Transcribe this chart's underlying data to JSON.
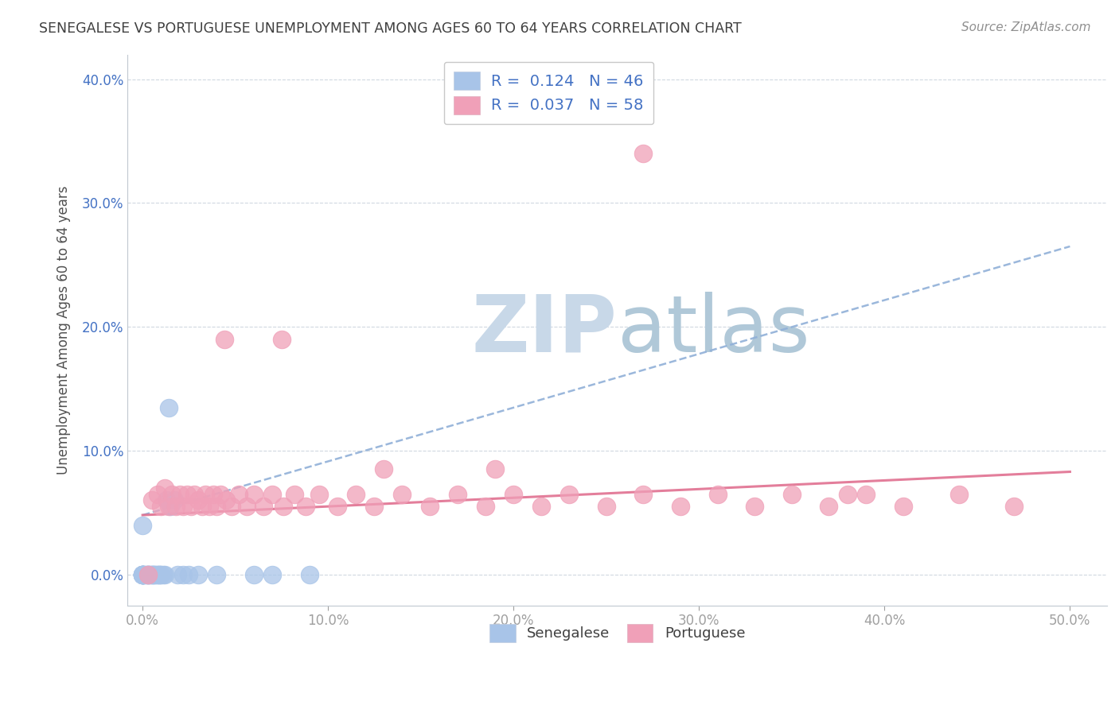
{
  "title": "SENEGALESE VS PORTUGUESE UNEMPLOYMENT AMONG AGES 60 TO 64 YEARS CORRELATION CHART",
  "source": "Source: ZipAtlas.com",
  "ylabel": "Unemployment Among Ages 60 to 64 years",
  "senegalese_R": 0.124,
  "senegalese_N": 46,
  "portuguese_R": 0.037,
  "portuguese_N": 58,
  "senegalese_color": "#a8c4e8",
  "portuguese_color": "#f0a0b8",
  "trendline_senegalese_color": "#90b0d8",
  "trendline_portuguese_color": "#e07090",
  "title_color": "#404040",
  "source_color": "#909090",
  "legend_text_color": "#4472c4",
  "background_color": "#ffffff",
  "watermark_text_color": "#c8d8e8",
  "grid_color": "#d0d8e0",
  "xlim": [
    -0.008,
    0.52
  ],
  "ylim": [
    -0.025,
    0.42
  ],
  "xticks": [
    0.0,
    0.1,
    0.2,
    0.3,
    0.4,
    0.5
  ],
  "yticks": [
    0.0,
    0.1,
    0.2,
    0.3,
    0.4
  ],
  "senegalese_x": [
    0.0,
    0.0,
    0.0,
    0.0,
    0.0,
    0.0,
    0.0,
    0.0,
    0.0,
    0.0,
    0.001,
    0.001,
    0.002,
    0.002,
    0.003,
    0.003,
    0.003,
    0.004,
    0.004,
    0.005,
    0.005,
    0.005,
    0.006,
    0.006,
    0.007,
    0.007,
    0.008,
    0.008,
    0.009,
    0.009,
    0.01,
    0.01,
    0.011,
    0.012,
    0.013,
    0.014,
    0.015,
    0.017,
    0.019,
    0.022,
    0.025,
    0.03,
    0.04,
    0.06,
    0.07,
    0.09
  ],
  "senegalese_y": [
    0.0,
    0.0,
    0.0,
    0.0,
    0.0,
    0.0,
    0.0,
    0.0,
    0.0,
    0.04,
    0.0,
    0.0,
    0.0,
    0.0,
    0.0,
    0.0,
    0.0,
    0.0,
    0.0,
    0.0,
    0.0,
    0.0,
    0.0,
    0.0,
    0.0,
    0.0,
    0.0,
    0.0,
    0.0,
    0.0,
    0.0,
    0.0,
    0.0,
    0.0,
    0.06,
    0.135,
    0.055,
    0.06,
    0.0,
    0.0,
    0.0,
    0.0,
    0.0,
    0.0,
    0.0,
    0.0
  ],
  "portuguese_x": [
    0.003,
    0.005,
    0.008,
    0.01,
    0.012,
    0.014,
    0.016,
    0.018,
    0.02,
    0.022,
    0.024,
    0.026,
    0.028,
    0.03,
    0.032,
    0.034,
    0.036,
    0.038,
    0.04,
    0.042,
    0.045,
    0.048,
    0.052,
    0.056,
    0.06,
    0.065,
    0.07,
    0.076,
    0.082,
    0.088,
    0.095,
    0.105,
    0.115,
    0.125,
    0.14,
    0.155,
    0.17,
    0.185,
    0.2,
    0.215,
    0.23,
    0.25,
    0.27,
    0.29,
    0.31,
    0.33,
    0.35,
    0.37,
    0.39,
    0.41,
    0.044,
    0.075,
    0.13,
    0.19,
    0.27,
    0.38,
    0.44,
    0.47
  ],
  "portuguese_y": [
    0.0,
    0.06,
    0.065,
    0.055,
    0.07,
    0.055,
    0.065,
    0.055,
    0.065,
    0.055,
    0.065,
    0.055,
    0.065,
    0.06,
    0.055,
    0.065,
    0.055,
    0.065,
    0.055,
    0.065,
    0.06,
    0.055,
    0.065,
    0.055,
    0.065,
    0.055,
    0.065,
    0.055,
    0.065,
    0.055,
    0.065,
    0.055,
    0.065,
    0.055,
    0.065,
    0.055,
    0.065,
    0.055,
    0.065,
    0.055,
    0.065,
    0.055,
    0.065,
    0.055,
    0.065,
    0.055,
    0.065,
    0.055,
    0.065,
    0.055,
    0.19,
    0.19,
    0.085,
    0.085,
    0.34,
    0.065,
    0.065,
    0.055
  ],
  "sen_trend_x": [
    0.0,
    0.5
  ],
  "sen_trend_y": [
    0.048,
    0.265
  ],
  "por_trend_x": [
    0.0,
    0.5
  ],
  "por_trend_y": [
    0.048,
    0.083
  ]
}
